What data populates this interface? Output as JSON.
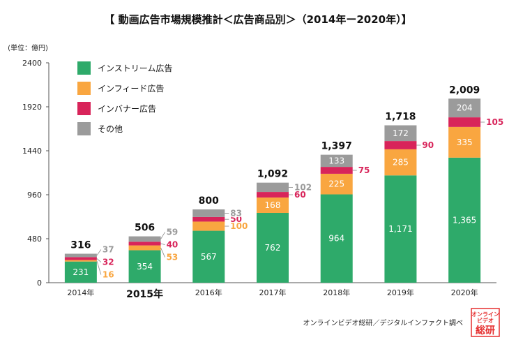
{
  "title": "【 動画広告市場規模推計＜広告商品別＞（2014年ー2020年）】",
  "unit_label": "(単位：億円)",
  "source": "オンラインビデオ総研／デジタルインファクト調べ",
  "logo": {
    "line1": "オンライン",
    "line2": "ビデオ",
    "line3": "総研"
  },
  "colors": {
    "instream": "#2eaa6a",
    "infeed": "#f9a640",
    "inbanner": "#d8245a",
    "other": "#9b9b9b",
    "axis": "#555555",
    "connector": "#888888"
  },
  "chart_data": {
    "type": "bar",
    "stacked": true,
    "categories": [
      "2014年",
      "2015年",
      "2016年",
      "2017年",
      "2018年",
      "2019年",
      "2020年"
    ],
    "highlight_category": "2015年",
    "series": [
      {
        "name": "インストリーム広告",
        "color_key": "instream",
        "values": [
          231,
          354,
          567,
          762,
          964,
          1171,
          1365
        ],
        "labels": [
          "231",
          "354",
          "567",
          "762",
          "964",
          "1,171",
          "1,365"
        ]
      },
      {
        "name": "インフィード広告",
        "color_key": "infeed",
        "values": [
          16,
          53,
          100,
          168,
          225,
          285,
          335
        ],
        "labels": [
          "16",
          "53",
          "100",
          "168",
          "225",
          "285",
          "335"
        ]
      },
      {
        "name": "インバナー広告",
        "color_key": "inbanner",
        "values": [
          32,
          40,
          50,
          60,
          75,
          90,
          105
        ],
        "labels": [
          "32",
          "40",
          "50",
          "60",
          "75",
          "90",
          "105"
        ]
      },
      {
        "name": "その他",
        "color_key": "other",
        "values": [
          37,
          59,
          83,
          102,
          133,
          172,
          204
        ],
        "labels": [
          "37",
          "59",
          "83",
          "102",
          "133",
          "172",
          "204"
        ]
      }
    ],
    "totals": [
      316,
      506,
      800,
      1092,
      1397,
      1718,
      2009
    ],
    "total_labels": [
      "316",
      "506",
      "800",
      "1,092",
      "1,397",
      "1,718",
      "2,009"
    ],
    "ylim": [
      0,
      2400
    ],
    "yticks": [
      0,
      480,
      960,
      1440,
      1920,
      2400
    ],
    "grid": false,
    "legend_position": "top-left"
  }
}
